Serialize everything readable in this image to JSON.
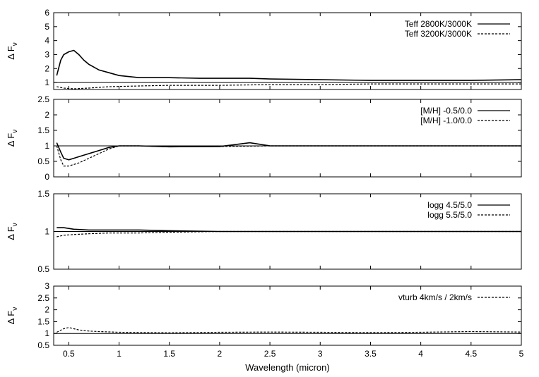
{
  "chart_data": [
    {
      "type": "line",
      "ylabel": "Δ F",
      "ylabel_sub": "ν",
      "ylim": [
        0.5,
        6
      ],
      "yticks": [
        1,
        2,
        3,
        4,
        5,
        6
      ],
      "xlim": [
        0.35,
        5
      ],
      "series": [
        {
          "name": "Teff 2800K/3000K",
          "style": "solid",
          "x": [
            0.38,
            0.42,
            0.45,
            0.5,
            0.55,
            0.6,
            0.65,
            0.7,
            0.8,
            0.9,
            1.0,
            1.2,
            1.5,
            1.8,
            2.0,
            2.3,
            2.5,
            3.0,
            3.5,
            4.0,
            4.5,
            5.0
          ],
          "y": [
            1.5,
            2.6,
            3.0,
            3.2,
            3.3,
            3.0,
            2.6,
            2.3,
            1.9,
            1.7,
            1.5,
            1.35,
            1.35,
            1.3,
            1.3,
            1.3,
            1.25,
            1.2,
            1.15,
            1.15,
            1.15,
            1.2
          ]
        },
        {
          "name": "Teff 3200K/3000K",
          "style": "dashed",
          "x": [
            0.38,
            0.45,
            0.55,
            0.7,
            0.9,
            1.2,
            1.5,
            2.0,
            2.5,
            3.0,
            3.5,
            4.0,
            4.5,
            5.0
          ],
          "y": [
            0.7,
            0.6,
            0.55,
            0.6,
            0.7,
            0.75,
            0.8,
            0.8,
            0.85,
            0.85,
            0.9,
            0.9,
            0.9,
            0.9
          ]
        }
      ],
      "hline": 1
    },
    {
      "type": "line",
      "ylabel": "Δ F",
      "ylabel_sub": "ν",
      "ylim": [
        0,
        2.5
      ],
      "yticks": [
        0,
        0.5,
        1,
        1.5,
        2,
        2.5
      ],
      "xlim": [
        0.35,
        5
      ],
      "series": [
        {
          "name": "[M/H] -0.5/0.0",
          "style": "solid",
          "x": [
            0.38,
            0.42,
            0.45,
            0.5,
            0.55,
            0.6,
            0.7,
            0.8,
            0.9,
            1.0,
            1.2,
            1.5,
            2.0,
            2.3,
            2.5,
            3.0,
            3.5,
            4.0,
            4.5,
            5.0
          ],
          "y": [
            1.1,
            0.8,
            0.6,
            0.55,
            0.6,
            0.65,
            0.75,
            0.85,
            0.95,
            1.0,
            1.0,
            0.97,
            0.98,
            1.1,
            1.0,
            1.0,
            1.0,
            1.0,
            1.0,
            1.0
          ]
        },
        {
          "name": "[M/H] -1.0/0.0",
          "style": "dashed",
          "x": [
            0.38,
            0.42,
            0.45,
            0.5,
            0.55,
            0.6,
            0.7,
            0.8,
            0.9,
            1.0,
            1.2,
            1.5,
            2.0,
            2.5,
            3.0,
            3.5,
            4.0,
            4.5,
            5.0
          ],
          "y": [
            1.0,
            0.55,
            0.35,
            0.35,
            0.4,
            0.45,
            0.6,
            0.75,
            0.9,
            1.0,
            1.0,
            0.97,
            0.98,
            1.0,
            1.0,
            1.0,
            1.0,
            1.0,
            1.0
          ]
        }
      ],
      "hline": 1
    },
    {
      "type": "line",
      "ylabel": "Δ F",
      "ylabel_sub": "ν",
      "ylim": [
        0.5,
        1.5
      ],
      "yticks": [
        0.5,
        1,
        1.5
      ],
      "xlim": [
        0.35,
        5
      ],
      "series": [
        {
          "name": "logg 4.5/5.0",
          "style": "solid",
          "x": [
            0.38,
            0.45,
            0.55,
            0.7,
            0.9,
            1.2,
            1.5,
            2.0,
            2.5,
            3.0,
            4.0,
            5.0
          ],
          "y": [
            1.05,
            1.05,
            1.03,
            1.02,
            1.02,
            1.02,
            1.01,
            1.0,
            1.0,
            1.0,
            1.0,
            1.0
          ]
        },
        {
          "name": "logg 5.5/5.0",
          "style": "dashed",
          "x": [
            0.38,
            0.45,
            0.55,
            0.7,
            0.9,
            1.2,
            1.5,
            2.0,
            2.5,
            3.0,
            4.0,
            5.0
          ],
          "y": [
            0.93,
            0.95,
            0.96,
            0.97,
            0.98,
            0.98,
            0.99,
            1.0,
            1.0,
            1.0,
            1.0,
            1.0
          ]
        }
      ],
      "hline": 1
    },
    {
      "type": "line",
      "ylabel": "Δ F",
      "ylabel_sub": "ν",
      "xlabel": "Wavelength (micron)",
      "ylim": [
        0.5,
        3
      ],
      "yticks": [
        0.5,
        1,
        1.5,
        2,
        2.5,
        3
      ],
      "xlim": [
        0.35,
        5
      ],
      "xticks": [
        0.5,
        1,
        1.5,
        2,
        2.5,
        3,
        3.5,
        4,
        4.5,
        5
      ],
      "series": [
        {
          "name": "vturb 4km/s / 2km/s",
          "style": "dashed",
          "x": [
            0.38,
            0.45,
            0.5,
            0.55,
            0.6,
            0.7,
            0.8,
            1.0,
            1.5,
            2.0,
            2.5,
            3.0,
            3.5,
            4.0,
            4.5,
            5.0
          ],
          "y": [
            1.05,
            1.2,
            1.25,
            1.2,
            1.15,
            1.1,
            1.08,
            1.05,
            1.03,
            1.05,
            1.06,
            1.05,
            1.04,
            1.05,
            1.08,
            1.06
          ]
        }
      ],
      "hline": 1
    }
  ]
}
